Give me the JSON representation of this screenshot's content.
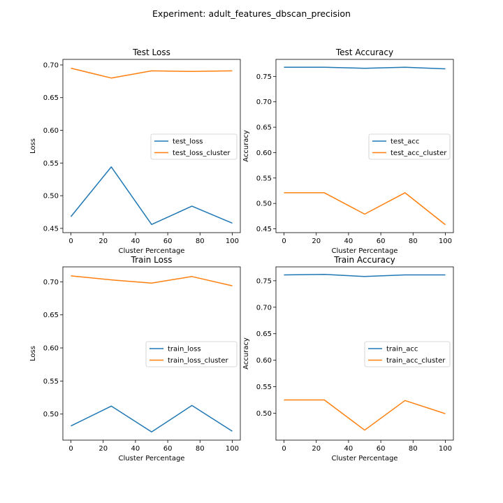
{
  "figure": {
    "suptitle": "Experiment: adult_features_dbscan_precision"
  },
  "colors": {
    "blue": "#1f77b4",
    "orange": "#ff7f0e"
  },
  "chart_data": [
    {
      "type": "line",
      "title": "Test Loss",
      "xlabel": "Cluster Percentage",
      "ylabel": "Loss",
      "x": [
        0,
        25,
        50,
        75,
        100
      ],
      "xlim": [
        -5,
        105
      ],
      "ylim": [
        0.4435,
        0.7085
      ],
      "xticks": [
        0,
        20,
        40,
        60,
        80,
        100
      ],
      "yticks": [
        0.45,
        0.5,
        0.55,
        0.6,
        0.65,
        0.7
      ],
      "legend_loc": "center-right",
      "series": [
        {
          "name": "test_loss",
          "color": "blue",
          "values": [
            0.468,
            0.544,
            0.456,
            0.484,
            0.458
          ]
        },
        {
          "name": "test_loss_cluster",
          "color": "orange",
          "values": [
            0.695,
            0.68,
            0.691,
            0.69,
            0.691
          ]
        }
      ]
    },
    {
      "type": "line",
      "title": "Test Accuracy",
      "xlabel": "Cluster Percentage",
      "ylabel": "Accuracy",
      "x": [
        0,
        25,
        50,
        75,
        100
      ],
      "xlim": [
        -5,
        105
      ],
      "ylim": [
        0.4425,
        0.7835
      ],
      "xticks": [
        0,
        20,
        40,
        60,
        80,
        100
      ],
      "yticks": [
        0.45,
        0.5,
        0.55,
        0.6,
        0.65,
        0.7,
        0.75
      ],
      "legend_loc": "center-right",
      "series": [
        {
          "name": "test_acc",
          "color": "blue",
          "values": [
            0.768,
            0.768,
            0.766,
            0.768,
            0.765
          ]
        },
        {
          "name": "test_acc_cluster",
          "color": "orange",
          "values": [
            0.521,
            0.521,
            0.479,
            0.521,
            0.458
          ]
        }
      ]
    },
    {
      "type": "line",
      "title": "Train Loss",
      "xlabel": "Cluster Percentage",
      "ylabel": "Loss",
      "x": [
        0,
        25,
        50,
        75,
        100
      ],
      "xlim": [
        -5,
        105
      ],
      "ylim": [
        0.4606,
        0.7226
      ],
      "xticks": [
        0,
        20,
        40,
        60,
        80,
        100
      ],
      "yticks": [
        0.5,
        0.55,
        0.6,
        0.65,
        0.7
      ],
      "legend_loc": "center-right",
      "series": [
        {
          "name": "train_loss",
          "color": "blue",
          "values": [
            0.482,
            0.512,
            0.473,
            0.513,
            0.474
          ]
        },
        {
          "name": "train_loss_cluster",
          "color": "orange",
          "values": [
            0.709,
            0.703,
            0.698,
            0.708,
            0.694
          ]
        }
      ]
    },
    {
      "type": "line",
      "title": "Train Accuracy",
      "xlabel": "Cluster Percentage",
      "ylabel": "Accuracy",
      "x": [
        0,
        25,
        50,
        75,
        100
      ],
      "xlim": [
        -5,
        105
      ],
      "ylim": [
        0.4492,
        0.7762
      ],
      "xticks": [
        0,
        20,
        40,
        60,
        80,
        100
      ],
      "yticks": [
        0.5,
        0.55,
        0.6,
        0.65,
        0.7,
        0.75
      ],
      "legend_loc": "center-right",
      "series": [
        {
          "name": "train_acc",
          "color": "blue",
          "values": [
            0.761,
            0.762,
            0.758,
            0.761,
            0.761
          ]
        },
        {
          "name": "train_acc_cluster",
          "color": "orange",
          "values": [
            0.525,
            0.525,
            0.468,
            0.524,
            0.499
          ]
        }
      ]
    }
  ]
}
